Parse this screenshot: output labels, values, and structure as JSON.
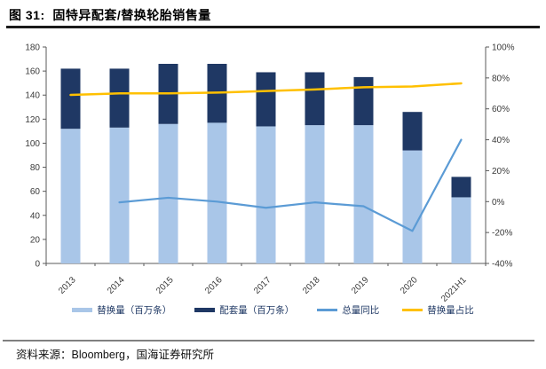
{
  "title": "图 31:  固特异配套/替换轮胎销售量",
  "source": "资料来源：Bloomberg，国海证券研究所",
  "colors": {
    "replacement_bar": "#A9C6E8",
    "oe_bar": "#1F3864",
    "yoy_line": "#5B9BD5",
    "share_line": "#FFC000",
    "axis_line": "#595959",
    "tick_label": "#3a3a3a",
    "legend_text": "#1F3864",
    "title_rule": "#1A1A1A",
    "source_rule": "#808080"
  },
  "chart_data": {
    "type": "combo_stacked_bar_line",
    "title": "固特异配套/替换轮胎销售量",
    "categories": [
      "2013",
      "2014",
      "2015",
      "2016",
      "2017",
      "2018",
      "2019",
      "2020",
      "2021H1"
    ],
    "series": [
      {
        "id": "replacement-volume",
        "name": "替换量（百万条）",
        "type": "bar",
        "stacked": true,
        "axis": "left",
        "color": "#A9C6E8",
        "values": [
          112,
          113,
          116,
          117,
          114,
          115,
          115,
          94,
          55
        ]
      },
      {
        "id": "oe-volume",
        "name": "配套量（百万条）",
        "type": "bar",
        "stacked": true,
        "axis": "left",
        "color": "#1F3864",
        "values": [
          50,
          49,
          50,
          49,
          45,
          44,
          40,
          32,
          17
        ]
      },
      {
        "id": "total-yoy",
        "name": "总量同比",
        "type": "line",
        "axis": "right",
        "color": "#5B9BD5",
        "values": [
          null,
          -0.5,
          2.5,
          0,
          -4,
          -0.5,
          -3,
          -19,
          40
        ]
      },
      {
        "id": "replacement-share",
        "name": "替换量占比",
        "type": "line",
        "axis": "right",
        "color": "#FFC000",
        "values": [
          69,
          70,
          70,
          70.5,
          71.5,
          72.5,
          74,
          74.5,
          76.5
        ]
      }
    ],
    "left_axis": {
      "min": 0,
      "max": 180,
      "step": 20,
      "tick_labels": [
        "0",
        "20",
        "40",
        "60",
        "80",
        "100",
        "120",
        "140",
        "160",
        "180"
      ]
    },
    "right_axis": {
      "min": -40,
      "max": 100,
      "step": 20,
      "tick_labels": [
        "-40%",
        "-20%",
        "0%",
        "20%",
        "40%",
        "60%",
        "80%",
        "100%"
      ]
    },
    "grid": false,
    "legend_position": "bottom"
  }
}
